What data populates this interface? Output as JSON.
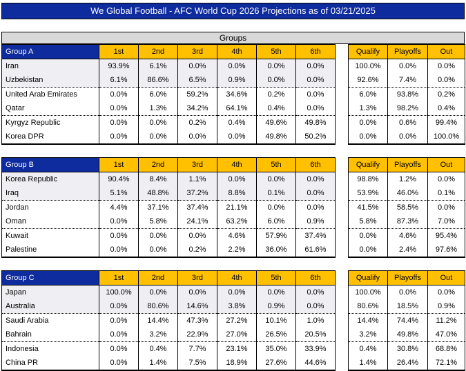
{
  "header": {
    "title": "We Global Football - AFC World Cup 2026 Projections as of 03/21/2025"
  },
  "section_header": "Groups",
  "colors": {
    "header_blue": "#0F2C9E",
    "column_gold": "#FFC000",
    "section_gray": "#D9D9D9",
    "top_two_row_shade": "#EEEEF3"
  },
  "chart_data": {
    "type": "table",
    "position_columns": [
      "1st",
      "2nd",
      "3rd",
      "4th",
      "5th",
      "6th"
    ],
    "outcome_columns": [
      "Qualify",
      "Playoffs",
      "Out"
    ],
    "groups": [
      {
        "name": "Group A",
        "teams": [
          {
            "team": "Iran",
            "positions": [
              "93.9%",
              "6.1%",
              "0.0%",
              "0.0%",
              "0.0%",
              "0.0%"
            ],
            "outcomes": [
              "100.0%",
              "0.0%",
              "0.0%"
            ]
          },
          {
            "team": "Uzbekistan",
            "positions": [
              "6.1%",
              "86.6%",
              "6.5%",
              "0.9%",
              "0.0%",
              "0.0%"
            ],
            "outcomes": [
              "92.6%",
              "7.4%",
              "0.0%"
            ]
          },
          {
            "team": "United Arab Emirates",
            "positions": [
              "0.0%",
              "6.0%",
              "59.2%",
              "34.6%",
              "0.2%",
              "0.0%"
            ],
            "outcomes": [
              "6.0%",
              "93.8%",
              "0.2%"
            ]
          },
          {
            "team": "Qatar",
            "positions": [
              "0.0%",
              "1.3%",
              "34.2%",
              "64.1%",
              "0.4%",
              "0.0%"
            ],
            "outcomes": [
              "1.3%",
              "98.2%",
              "0.4%"
            ]
          },
          {
            "team": "Kyrgyz Republic",
            "positions": [
              "0.0%",
              "0.0%",
              "0.2%",
              "0.4%",
              "49.6%",
              "49.8%"
            ],
            "outcomes": [
              "0.0%",
              "0.6%",
              "99.4%"
            ]
          },
          {
            "team": "Korea DPR",
            "positions": [
              "0.0%",
              "0.0%",
              "0.0%",
              "0.0%",
              "49.8%",
              "50.2%"
            ],
            "outcomes": [
              "0.0%",
              "0.0%",
              "100.0%"
            ]
          }
        ]
      },
      {
        "name": "Group B",
        "teams": [
          {
            "team": "Korea Republic",
            "positions": [
              "90.4%",
              "8.4%",
              "1.1%",
              "0.0%",
              "0.0%",
              "0.0%"
            ],
            "outcomes": [
              "98.8%",
              "1.2%",
              "0.0%"
            ]
          },
          {
            "team": "Iraq",
            "positions": [
              "5.1%",
              "48.8%",
              "37.2%",
              "8.8%",
              "0.1%",
              "0.0%"
            ],
            "outcomes": [
              "53.9%",
              "46.0%",
              "0.1%"
            ]
          },
          {
            "team": "Jordan",
            "positions": [
              "4.4%",
              "37.1%",
              "37.4%",
              "21.1%",
              "0.0%",
              "0.0%"
            ],
            "outcomes": [
              "41.5%",
              "58.5%",
              "0.0%"
            ]
          },
          {
            "team": "Oman",
            "positions": [
              "0.0%",
              "5.8%",
              "24.1%",
              "63.2%",
              "6.0%",
              "0.9%"
            ],
            "outcomes": [
              "5.8%",
              "87.3%",
              "7.0%"
            ]
          },
          {
            "team": "Kuwait",
            "positions": [
              "0.0%",
              "0.0%",
              "0.0%",
              "4.6%",
              "57.9%",
              "37.4%"
            ],
            "outcomes": [
              "0.0%",
              "4.6%",
              "95.4%"
            ]
          },
          {
            "team": "Palestine",
            "positions": [
              "0.0%",
              "0.0%",
              "0.2%",
              "2.2%",
              "36.0%",
              "61.6%"
            ],
            "outcomes": [
              "0.0%",
              "2.4%",
              "97.6%"
            ]
          }
        ]
      },
      {
        "name": "Group C",
        "teams": [
          {
            "team": "Japan",
            "positions": [
              "100.0%",
              "0.0%",
              "0.0%",
              "0.0%",
              "0.0%",
              "0.0%"
            ],
            "outcomes": [
              "100.0%",
              "0.0%",
              "0.0%"
            ]
          },
          {
            "team": "Australia",
            "positions": [
              "0.0%",
              "80.6%",
              "14.6%",
              "3.8%",
              "0.9%",
              "0.0%"
            ],
            "outcomes": [
              "80.6%",
              "18.5%",
              "0.9%"
            ]
          },
          {
            "team": "Saudi Arabia",
            "positions": [
              "0.0%",
              "14.4%",
              "47.3%",
              "27.2%",
              "10.1%",
              "1.0%"
            ],
            "outcomes": [
              "14.4%",
              "74.4%",
              "11.2%"
            ]
          },
          {
            "team": "Bahrain",
            "positions": [
              "0.0%",
              "3.2%",
              "22.9%",
              "27.0%",
              "26.5%",
              "20.5%"
            ],
            "outcomes": [
              "3.2%",
              "49.8%",
              "47.0%"
            ]
          },
          {
            "team": "Indonesia",
            "positions": [
              "0.0%",
              "0.4%",
              "7.7%",
              "23.1%",
              "35.0%",
              "33.9%"
            ],
            "outcomes": [
              "0.4%",
              "30.8%",
              "68.8%"
            ]
          },
          {
            "team": "China PR",
            "positions": [
              "0.0%",
              "1.4%",
              "7.5%",
              "18.9%",
              "27.6%",
              "44.6%"
            ],
            "outcomes": [
              "1.4%",
              "26.4%",
              "72.1%"
            ]
          }
        ]
      }
    ]
  }
}
